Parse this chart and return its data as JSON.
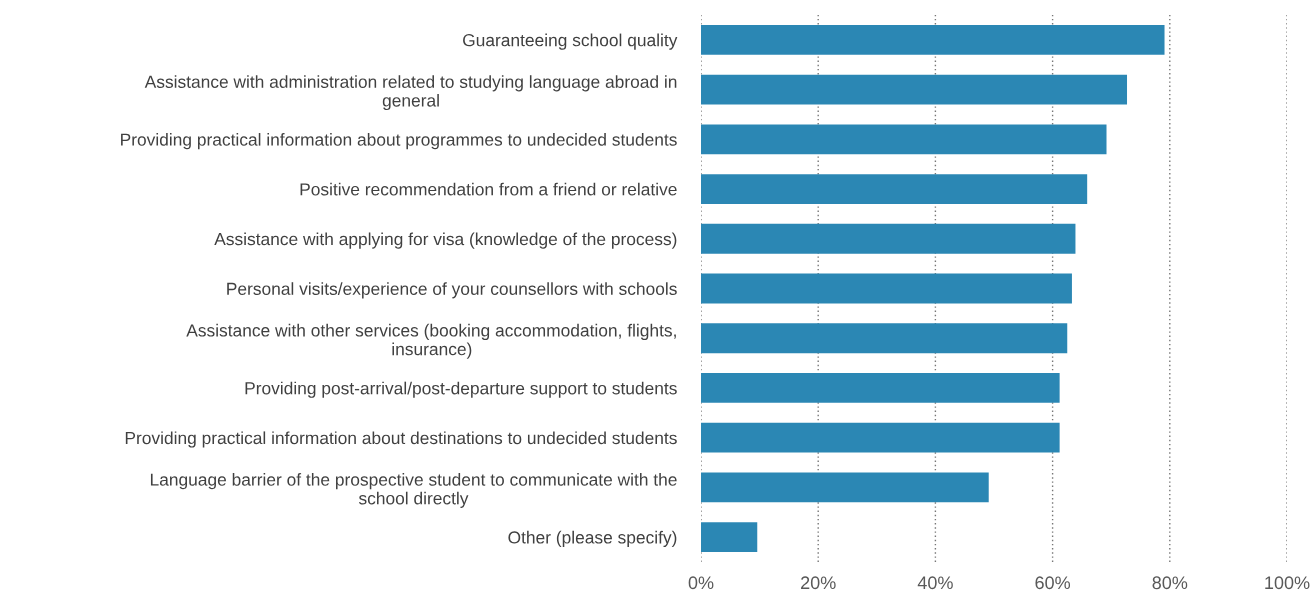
{
  "chart_data": {
    "type": "bar",
    "orientation": "horizontal",
    "categories": [
      "Guaranteeing school quality",
      "Assistance with administration related to studying language abroad in\ngeneral",
      "Providing practical information about programmes to undecided students",
      "Positive recommendation from a friend or relative",
      "Assistance with applying for visa (knowledge of the process)",
      "Personal visits/experience of your counsellors with schools",
      "Assistance with other services (booking accommodation, flights,\ninsurance)",
      "Providing post-arrival/post-departure support to students",
      "Providing practical information about destinations to undecided students",
      "Language barrier of the prospective student to communicate with the\nschool directly",
      "Other (please specify)"
    ],
    "values": [
      79.1,
      72.7,
      69.2,
      65.9,
      63.9,
      63.3,
      62.5,
      61.2,
      61.2,
      49.1,
      9.6
    ],
    "color": "#2b87b4",
    "xlim": [
      0,
      100
    ],
    "xticks": [
      {
        "value": 0,
        "label": "0%"
      },
      {
        "value": 20,
        "label": "20%"
      },
      {
        "value": 40,
        "label": "40%"
      },
      {
        "value": 60,
        "label": "60%"
      },
      {
        "value": 80,
        "label": "80%"
      },
      {
        "value": 100,
        "label": "100%"
      }
    ],
    "grid": "x"
  }
}
